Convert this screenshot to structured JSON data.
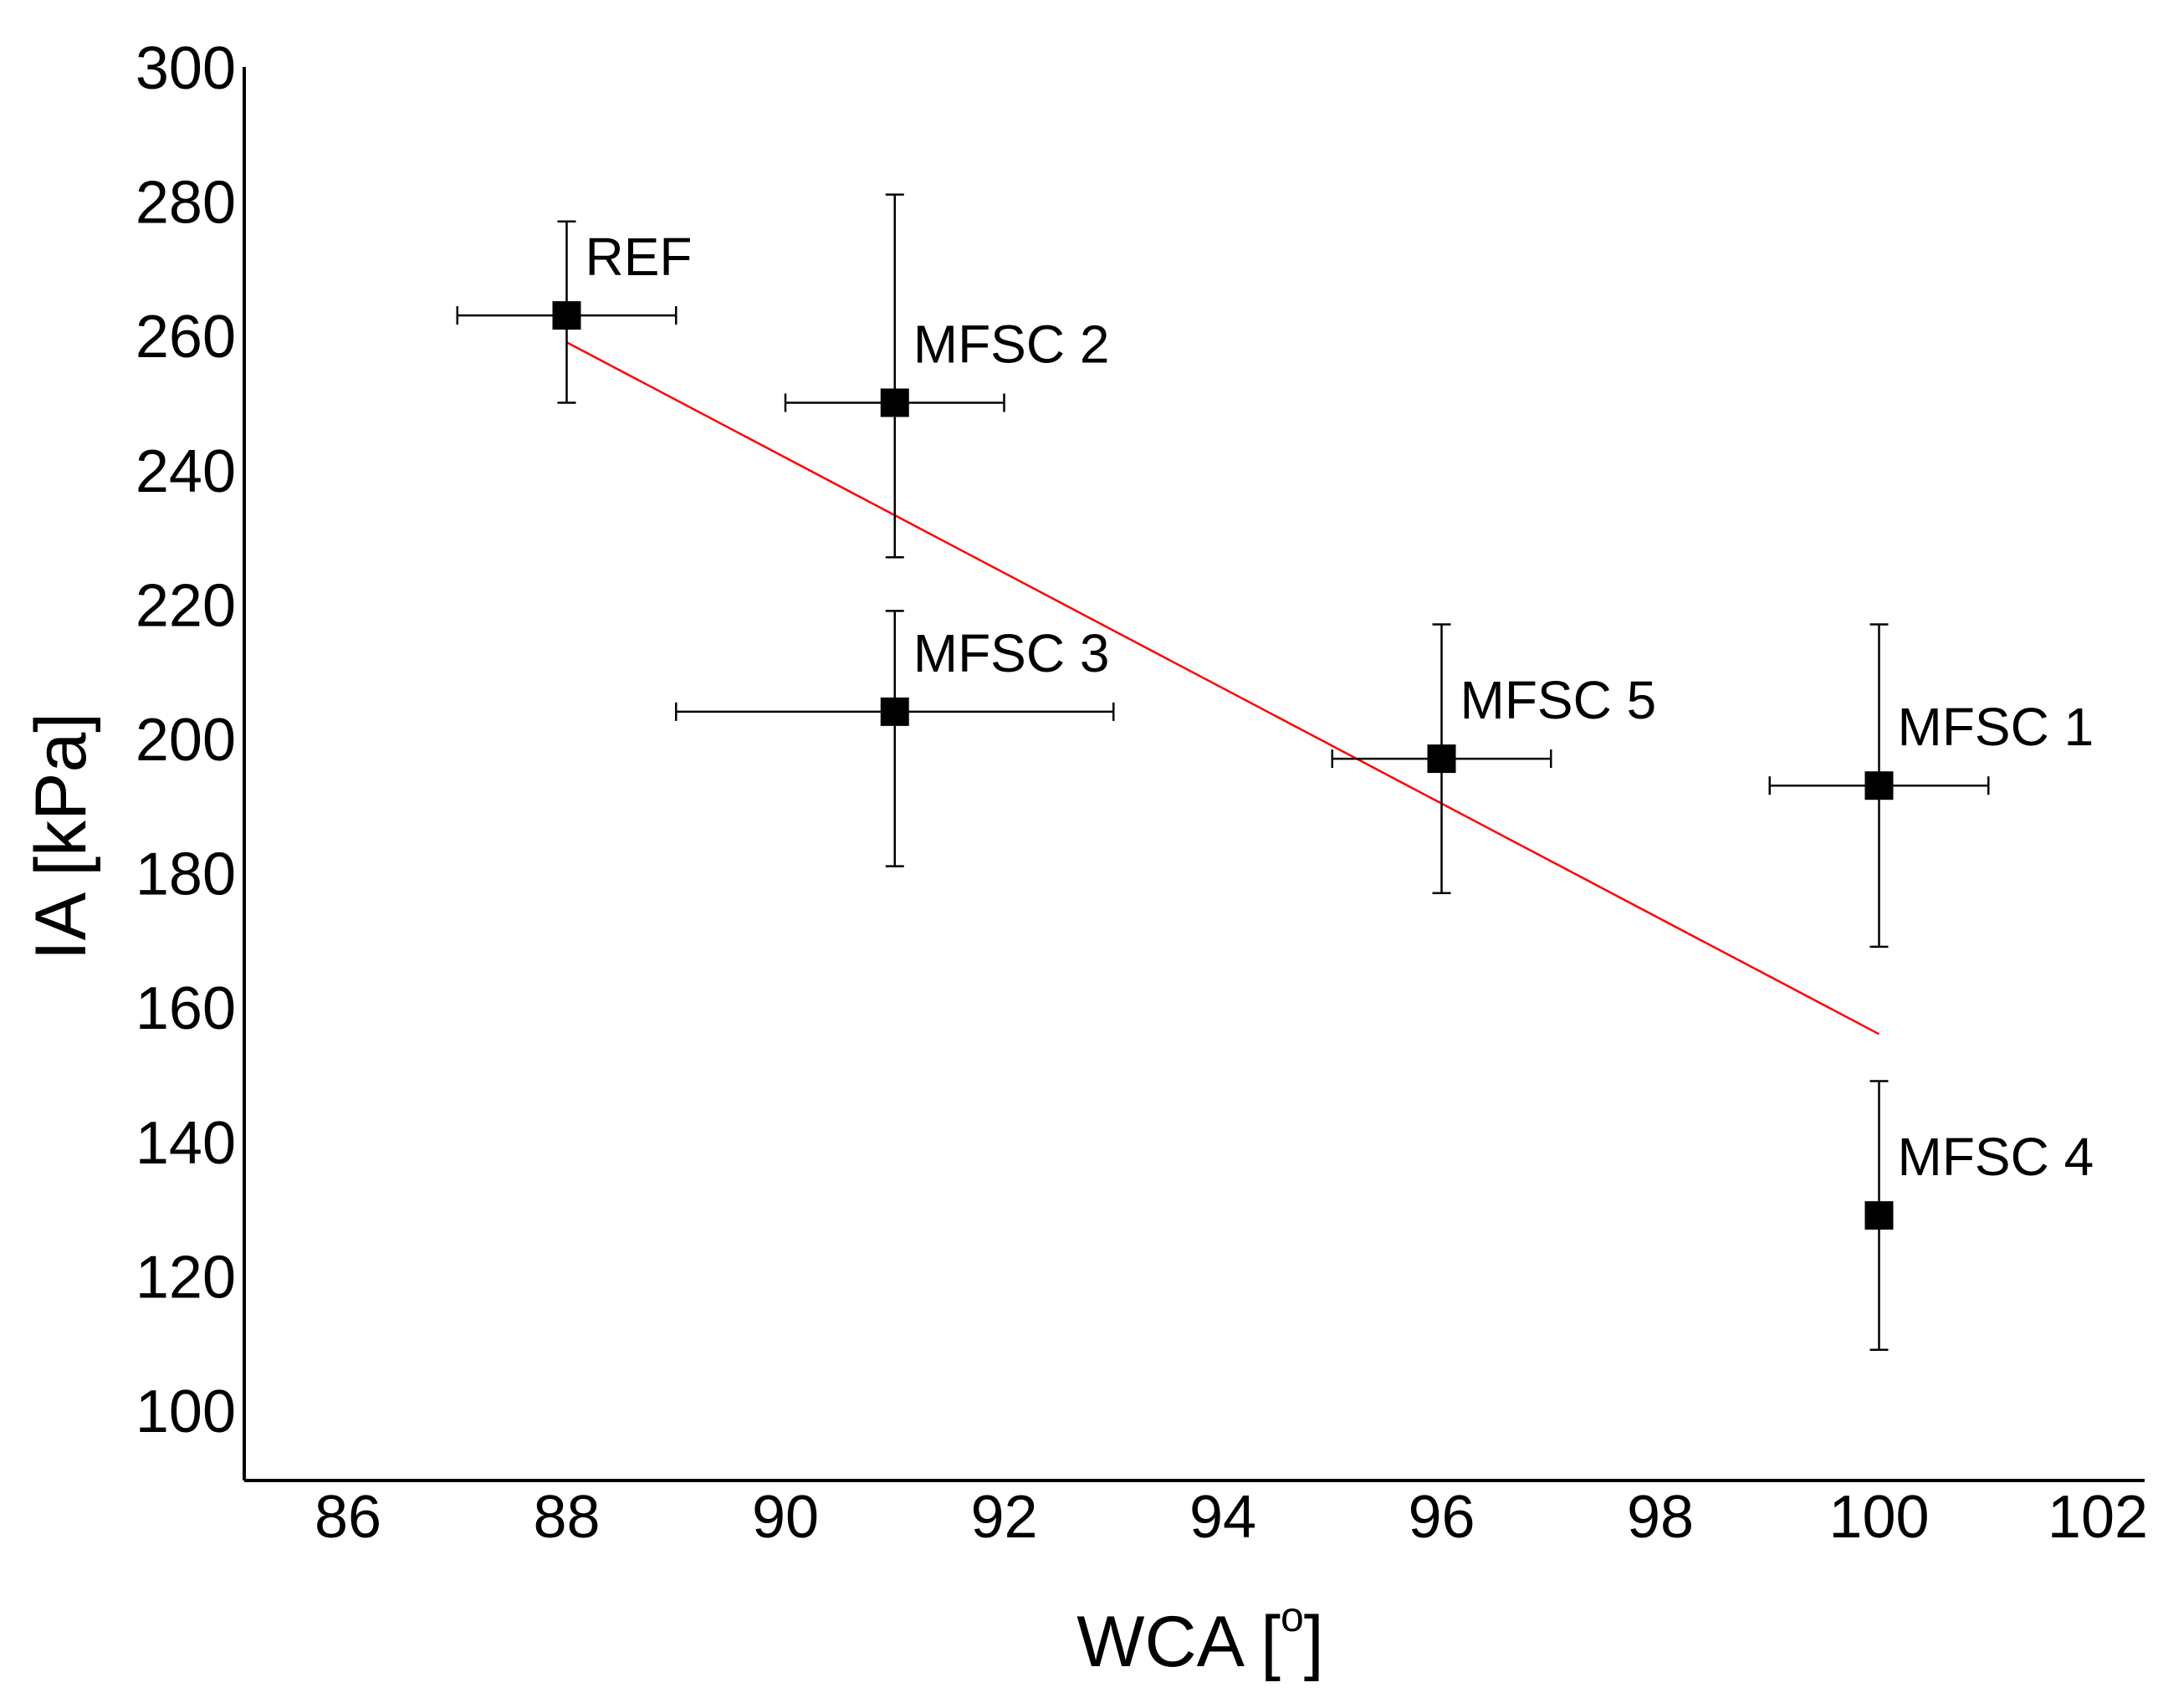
{
  "chart_data": {
    "type": "scatter",
    "title": "",
    "xlabel": "WCA [",
    "xlabel_degree": "o",
    "xlabel_close": "]",
    "ylabel": "IA [kPa]",
    "xlim": [
      85,
      103
    ],
    "ylim": [
      90,
      300
    ],
    "xticks": [
      "86",
      "88",
      "90",
      "92",
      "94",
      "96",
      "98",
      "100",
      "102"
    ],
    "yticks": [
      "100",
      "120",
      "140",
      "160",
      "180",
      "200",
      "220",
      "240",
      "260",
      "280",
      "300"
    ],
    "grid": false,
    "legend": "none",
    "points": [
      {
        "label": "REF",
        "x": 88,
        "y": 263,
        "xerr": 1,
        "yerr_low": 250,
        "yerr_high": 277
      },
      {
        "label": "MFSC 2",
        "x": 91,
        "y": 250,
        "xerr": 1,
        "yerr_low": 227,
        "yerr_high": 281
      },
      {
        "label": "MFSC 3",
        "x": 91,
        "y": 204,
        "xerr": 2,
        "yerr_low": 181,
        "yerr_high": 219
      },
      {
        "label": "MFSC 5",
        "x": 96,
        "y": 197,
        "xerr": 1,
        "yerr_low": 177,
        "yerr_high": 217
      },
      {
        "label": "MFSC 1",
        "x": 100,
        "y": 193,
        "xerr": 1,
        "yerr_low": 169,
        "yerr_high": 217
      },
      {
        "label": "MFSC 4",
        "x": 100,
        "y": 129,
        "xerr": 0,
        "yerr_low": 109,
        "yerr_high": 149
      }
    ],
    "fit_line": {
      "x": [
        88,
        100
      ],
      "y": [
        259,
        156
      ],
      "color": "#ff0000"
    },
    "marker_color": "#000000"
  }
}
